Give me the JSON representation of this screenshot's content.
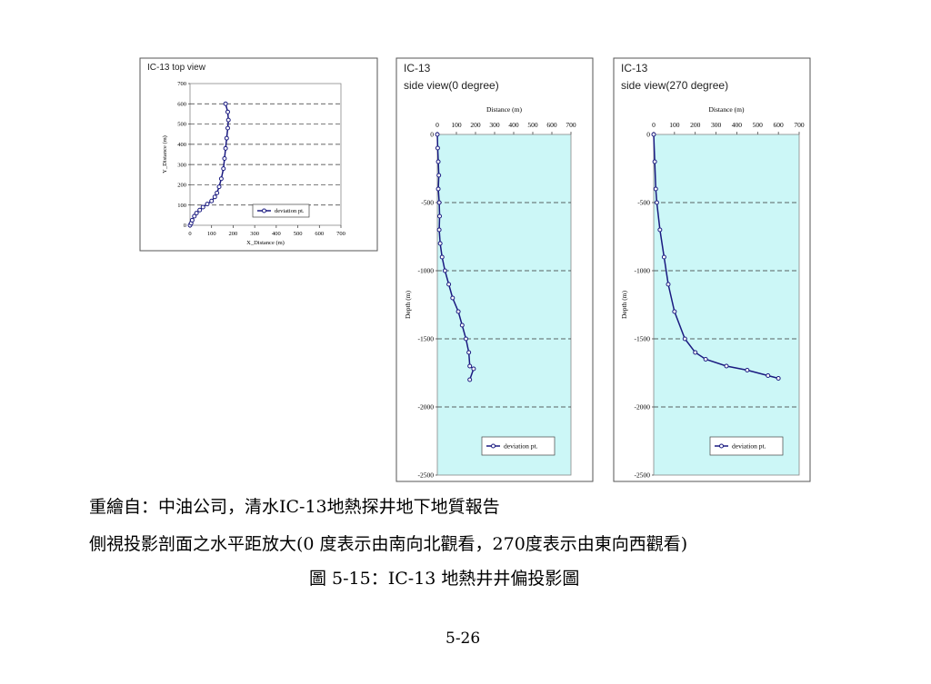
{
  "chart_data": [
    {
      "type": "line",
      "title": "IC-13  top view",
      "x_label": "X_Distance (m)",
      "y_label": "Y_Distance (m)",
      "x": [
        0,
        5,
        10,
        20,
        30,
        45,
        60,
        80,
        100,
        115,
        125,
        135,
        145,
        155,
        160,
        165,
        170,
        175,
        178,
        175,
        165
      ],
      "series": [
        {
          "name": "deviation pt.",
          "color": "#1a1a80",
          "values": [
            0,
            10,
            25,
            45,
            60,
            75,
            90,
            105,
            120,
            140,
            160,
            190,
            230,
            280,
            330,
            380,
            430,
            480,
            520,
            560,
            600
          ]
        }
      ],
      "xlim": [
        0,
        700
      ],
      "xticks": [
        0,
        100,
        200,
        300,
        400,
        500,
        600,
        700
      ],
      "ylim": [
        0,
        700
      ],
      "yticks": [
        0,
        100,
        200,
        300,
        400,
        500,
        600,
        700
      ],
      "grid": "y",
      "x_axis_position": "bottom",
      "legend": "lower right",
      "plot_color": "#ffffff"
    },
    {
      "type": "line",
      "title": "IC-13",
      "subtitle": "side view(0 degree)",
      "x_label": "Distance (m)",
      "y_label": "Depth (m)",
      "x": [
        0,
        2,
        5,
        8,
        5,
        10,
        12,
        10,
        15,
        25,
        40,
        60,
        80,
        110,
        130,
        150,
        165,
        170,
        190,
        170
      ],
      "series": [
        {
          "name": "deviation pt.",
          "color": "#1a1a80",
          "values": [
            0,
            -100,
            -200,
            -300,
            -400,
            -500,
            -600,
            -700,
            -800,
            -900,
            -1000,
            -1100,
            -1200,
            -1300,
            -1400,
            -1500,
            -1600,
            -1700,
            -1720,
            -1800
          ]
        }
      ],
      "xlim": [
        0,
        700
      ],
      "xticks": [
        0,
        100,
        200,
        300,
        400,
        500,
        600,
        700
      ],
      "ylim": [
        -2500,
        0
      ],
      "yticks": [
        0,
        -500,
        -1000,
        -1500,
        -2000,
        -2500
      ],
      "grid": "y",
      "x_axis_position": "top",
      "legend": "lower right",
      "plot_color": "#ccf7f7"
    },
    {
      "type": "line",
      "title": "IC-13",
      "subtitle": "side view(270 degree)",
      "x_label": "Distance (m)",
      "y_label": "Depth (m)",
      "x": [
        0,
        5,
        10,
        15,
        30,
        50,
        70,
        100,
        150,
        200,
        250,
        350,
        450,
        550,
        600
      ],
      "series": [
        {
          "name": "deviation pt.",
          "color": "#1a1a80",
          "values": [
            0,
            -200,
            -400,
            -500,
            -700,
            -900,
            -1100,
            -1300,
            -1500,
            -1600,
            -1650,
            -1700,
            -1730,
            -1770,
            -1790
          ]
        }
      ],
      "xlim": [
        0,
        700
      ],
      "xticks": [
        0,
        100,
        200,
        300,
        400,
        500,
        600,
        700
      ],
      "ylim": [
        -2500,
        0
      ],
      "yticks": [
        0,
        -500,
        -1000,
        -1500,
        -2000,
        -2500
      ],
      "grid": "y",
      "x_axis_position": "top",
      "legend": "lower right",
      "plot_color": "#ccf7f7"
    }
  ],
  "captions": [
    "重繪自：中油公司，清水IC-13地熱探井地下地質報告",
    "側視投影剖面之水平距放大(0 度表示由南向北觀看，270度表示由東向西觀看)",
    "圖  5-15：IC-13  地熱井井偏投影圖"
  ],
  "page_number": "5-26"
}
